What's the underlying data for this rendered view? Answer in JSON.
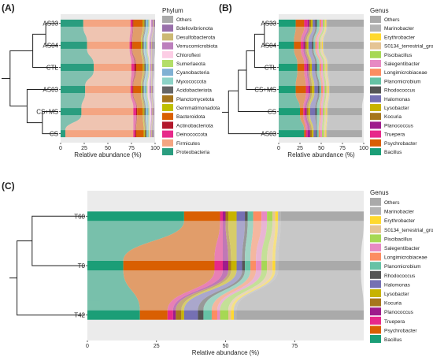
{
  "panels": {
    "A": "(A)",
    "B": "(B)",
    "C": "(C)"
  },
  "chart_data": [
    {
      "panel": "(A)",
      "type": "bar",
      "orientation": "horizontal",
      "stacked": true,
      "xlabel": "Relative abundance (%)",
      "xlim": [
        0,
        100
      ],
      "xticks": [
        0,
        25,
        50,
        75,
        100
      ],
      "categories": [
        "AS33",
        "AS04",
        "CTL",
        "AS03",
        "CS+MS",
        "CS"
      ],
      "legend_title": "Phylum",
      "legend_position": "right",
      "series": [
        {
          "name": "Proteobacteria",
          "color": "#2a9d7f",
          "values": [
            24,
            28,
            35,
            26,
            22,
            5
          ]
        },
        {
          "name": "Firmicutes",
          "color": "#f4a582",
          "values": [
            50,
            45,
            40,
            48,
            55,
            72
          ]
        },
        {
          "name": "Deinococcota",
          "color": "#e7298a",
          "values": [
            2,
            2,
            3,
            2,
            3,
            2
          ]
        },
        {
          "name": "Actinobacteriota",
          "color": "#b2182b",
          "values": [
            1,
            1,
            2,
            1,
            1,
            1
          ]
        },
        {
          "name": "Bacteroidota",
          "color": "#d95f02",
          "values": [
            10,
            9,
            7,
            8,
            6,
            8
          ]
        },
        {
          "name": "Gemmatimonadota",
          "color": "#bfbf00",
          "values": [
            1,
            1,
            1,
            1,
            1,
            1
          ]
        },
        {
          "name": "Planctomycetota",
          "color": "#a6761d",
          "values": [
            1,
            1,
            1,
            1,
            1,
            1
          ]
        },
        {
          "name": "Acidobacteriota",
          "color": "#666666",
          "values": [
            1,
            1,
            1,
            1,
            1,
            1
          ]
        },
        {
          "name": "Myxococcota",
          "color": "#8dd3c7",
          "values": [
            1,
            1,
            1,
            1,
            1,
            1
          ]
        },
        {
          "name": "Cyanobacteria",
          "color": "#80b1d3",
          "values": [
            2,
            2,
            2,
            2,
            2,
            1
          ]
        },
        {
          "name": "Sumerlaeota",
          "color": "#b3de69",
          "values": [
            1,
            1,
            1,
            1,
            1,
            1
          ]
        },
        {
          "name": "Chloroflexi",
          "color": "#fccde5",
          "values": [
            2,
            2,
            1,
            2,
            2,
            1
          ]
        },
        {
          "name": "Verrucomicrobiota",
          "color": "#bc80bd",
          "values": [
            2,
            2,
            1,
            2,
            1,
            1
          ]
        },
        {
          "name": "Desulfobacterota",
          "color": "#ccb974",
          "values": [
            1,
            1,
            1,
            1,
            1,
            1
          ]
        },
        {
          "name": "Bdellovibrionota",
          "color": "#9970ab",
          "values": [
            1,
            1,
            1,
            1,
            1,
            1
          ]
        },
        {
          "name": "Others",
          "color": "#aaaaaa",
          "values": [
            0,
            2,
            1,
            0,
            0,
            1
          ]
        }
      ]
    },
    {
      "panel": "(B)",
      "type": "bar",
      "orientation": "horizontal",
      "stacked": true,
      "xlabel": "Relative abundance (%)",
      "xlim": [
        0,
        100
      ],
      "xticks": [
        0,
        25,
        50,
        75,
        100
      ],
      "categories": [
        "AS33",
        "AS04",
        "CTL",
        "CS+MS",
        "CS",
        "AS03"
      ],
      "legend_title": "Genus",
      "legend_position": "right",
      "series": [
        {
          "name": "Bacillus",
          "color": "#1b9e77",
          "values": [
            20,
            18,
            22,
            20,
            25,
            30
          ]
        },
        {
          "name": "Psychrobacter",
          "color": "#d95f02",
          "values": [
            10,
            8,
            8,
            12,
            4,
            2
          ]
        },
        {
          "name": "Truepera",
          "color": "#e7298a",
          "values": [
            4,
            3,
            3,
            3,
            2,
            2
          ]
        },
        {
          "name": "Planococcus",
          "color": "#9e1c8c",
          "values": [
            2,
            2,
            2,
            2,
            2,
            3
          ]
        },
        {
          "name": "Kocuria",
          "color": "#a6761d",
          "values": [
            2,
            2,
            2,
            2,
            2,
            2
          ]
        },
        {
          "name": "Lysobacter",
          "color": "#c7b300",
          "values": [
            2,
            2,
            2,
            3,
            2,
            2
          ]
        },
        {
          "name": "Halomonas",
          "color": "#7570b3",
          "values": [
            3,
            4,
            4,
            4,
            6,
            3
          ]
        },
        {
          "name": "Rhodococcus",
          "color": "#555555",
          "values": [
            2,
            2,
            2,
            2,
            2,
            1
          ]
        },
        {
          "name": "Planomicrobium",
          "color": "#66c2a5",
          "values": [
            3,
            2,
            3,
            2,
            3,
            2
          ]
        },
        {
          "name": "Longimicrobiaceae",
          "color": "#fc8d62",
          "values": [
            2,
            2,
            2,
            2,
            2,
            2
          ]
        },
        {
          "name": "Salegentibacter",
          "color": "#e78ac3",
          "values": [
            2,
            2,
            2,
            2,
            2,
            2
          ]
        },
        {
          "name": "Piscibacillus",
          "color": "#a6d854",
          "values": [
            2,
            2,
            2,
            2,
            2,
            2
          ]
        },
        {
          "name": "S0134_terrestrial_group",
          "color": "#e5c494",
          "values": [
            1,
            2,
            2,
            2,
            2,
            2
          ]
        },
        {
          "name": "Erythrobacter",
          "color": "#ffd92f",
          "values": [
            1,
            1,
            1,
            1,
            1,
            1
          ]
        },
        {
          "name": "Marinobacter",
          "color": "#b3b3b3",
          "values": [
            1,
            1,
            1,
            1,
            1,
            1
          ]
        },
        {
          "name": "Others",
          "color": "#aaaaaa",
          "values": [
            43,
            47,
            42,
            40,
            40,
            41
          ]
        }
      ]
    },
    {
      "panel": "(C)",
      "type": "bar",
      "orientation": "horizontal",
      "stacked": true,
      "xlabel": "Relative abundance (%)",
      "xlim": [
        0,
        100
      ],
      "xticks": [
        0,
        25,
        50,
        75
      ],
      "categories": [
        "T60",
        "T0",
        "T42"
      ],
      "legend_title": "Genus",
      "legend_position": "right",
      "series": [
        {
          "name": "Bacillus",
          "color": "#1b9e77",
          "values": [
            35,
            13,
            19
          ]
        },
        {
          "name": "Psychrobacter",
          "color": "#d95f02",
          "values": [
            13,
            33,
            10
          ]
        },
        {
          "name": "Truepera",
          "color": "#e7298a",
          "values": [
            1,
            3,
            2
          ]
        },
        {
          "name": "Planococcus",
          "color": "#9e1c8c",
          "values": [
            1,
            2,
            1
          ]
        },
        {
          "name": "Kocuria",
          "color": "#a6761d",
          "values": [
            1,
            1,
            2
          ]
        },
        {
          "name": "Lysobacter",
          "color": "#c7b300",
          "values": [
            3,
            2,
            1
          ]
        },
        {
          "name": "Halomonas",
          "color": "#7570b3",
          "values": [
            3,
            2,
            5
          ]
        },
        {
          "name": "Rhodococcus",
          "color": "#555555",
          "values": [
            1,
            1,
            2
          ]
        },
        {
          "name": "Planomicrobium",
          "color": "#66c2a5",
          "values": [
            2,
            2,
            3
          ]
        },
        {
          "name": "Longimicrobiaceae",
          "color": "#fc8d62",
          "values": [
            3,
            2,
            2
          ]
        },
        {
          "name": "Salegentibacter",
          "color": "#e78ac3",
          "values": [
            2,
            2,
            1
          ]
        },
        {
          "name": "Piscibacillus",
          "color": "#a6d854",
          "values": [
            2,
            2,
            3
          ]
        },
        {
          "name": "S0134_terrestrial_group",
          "color": "#e5c494",
          "values": [
            1,
            2,
            1
          ]
        },
        {
          "name": "Erythrobacter",
          "color": "#ffd92f",
          "values": [
            1,
            1,
            1
          ]
        },
        {
          "name": "Marinobacter",
          "color": "#b3b3b3",
          "values": [
            1,
            1,
            1
          ]
        },
        {
          "name": "Others",
          "color": "#aaaaaa",
          "values": [
            30,
            30,
            46
          ]
        }
      ]
    }
  ]
}
